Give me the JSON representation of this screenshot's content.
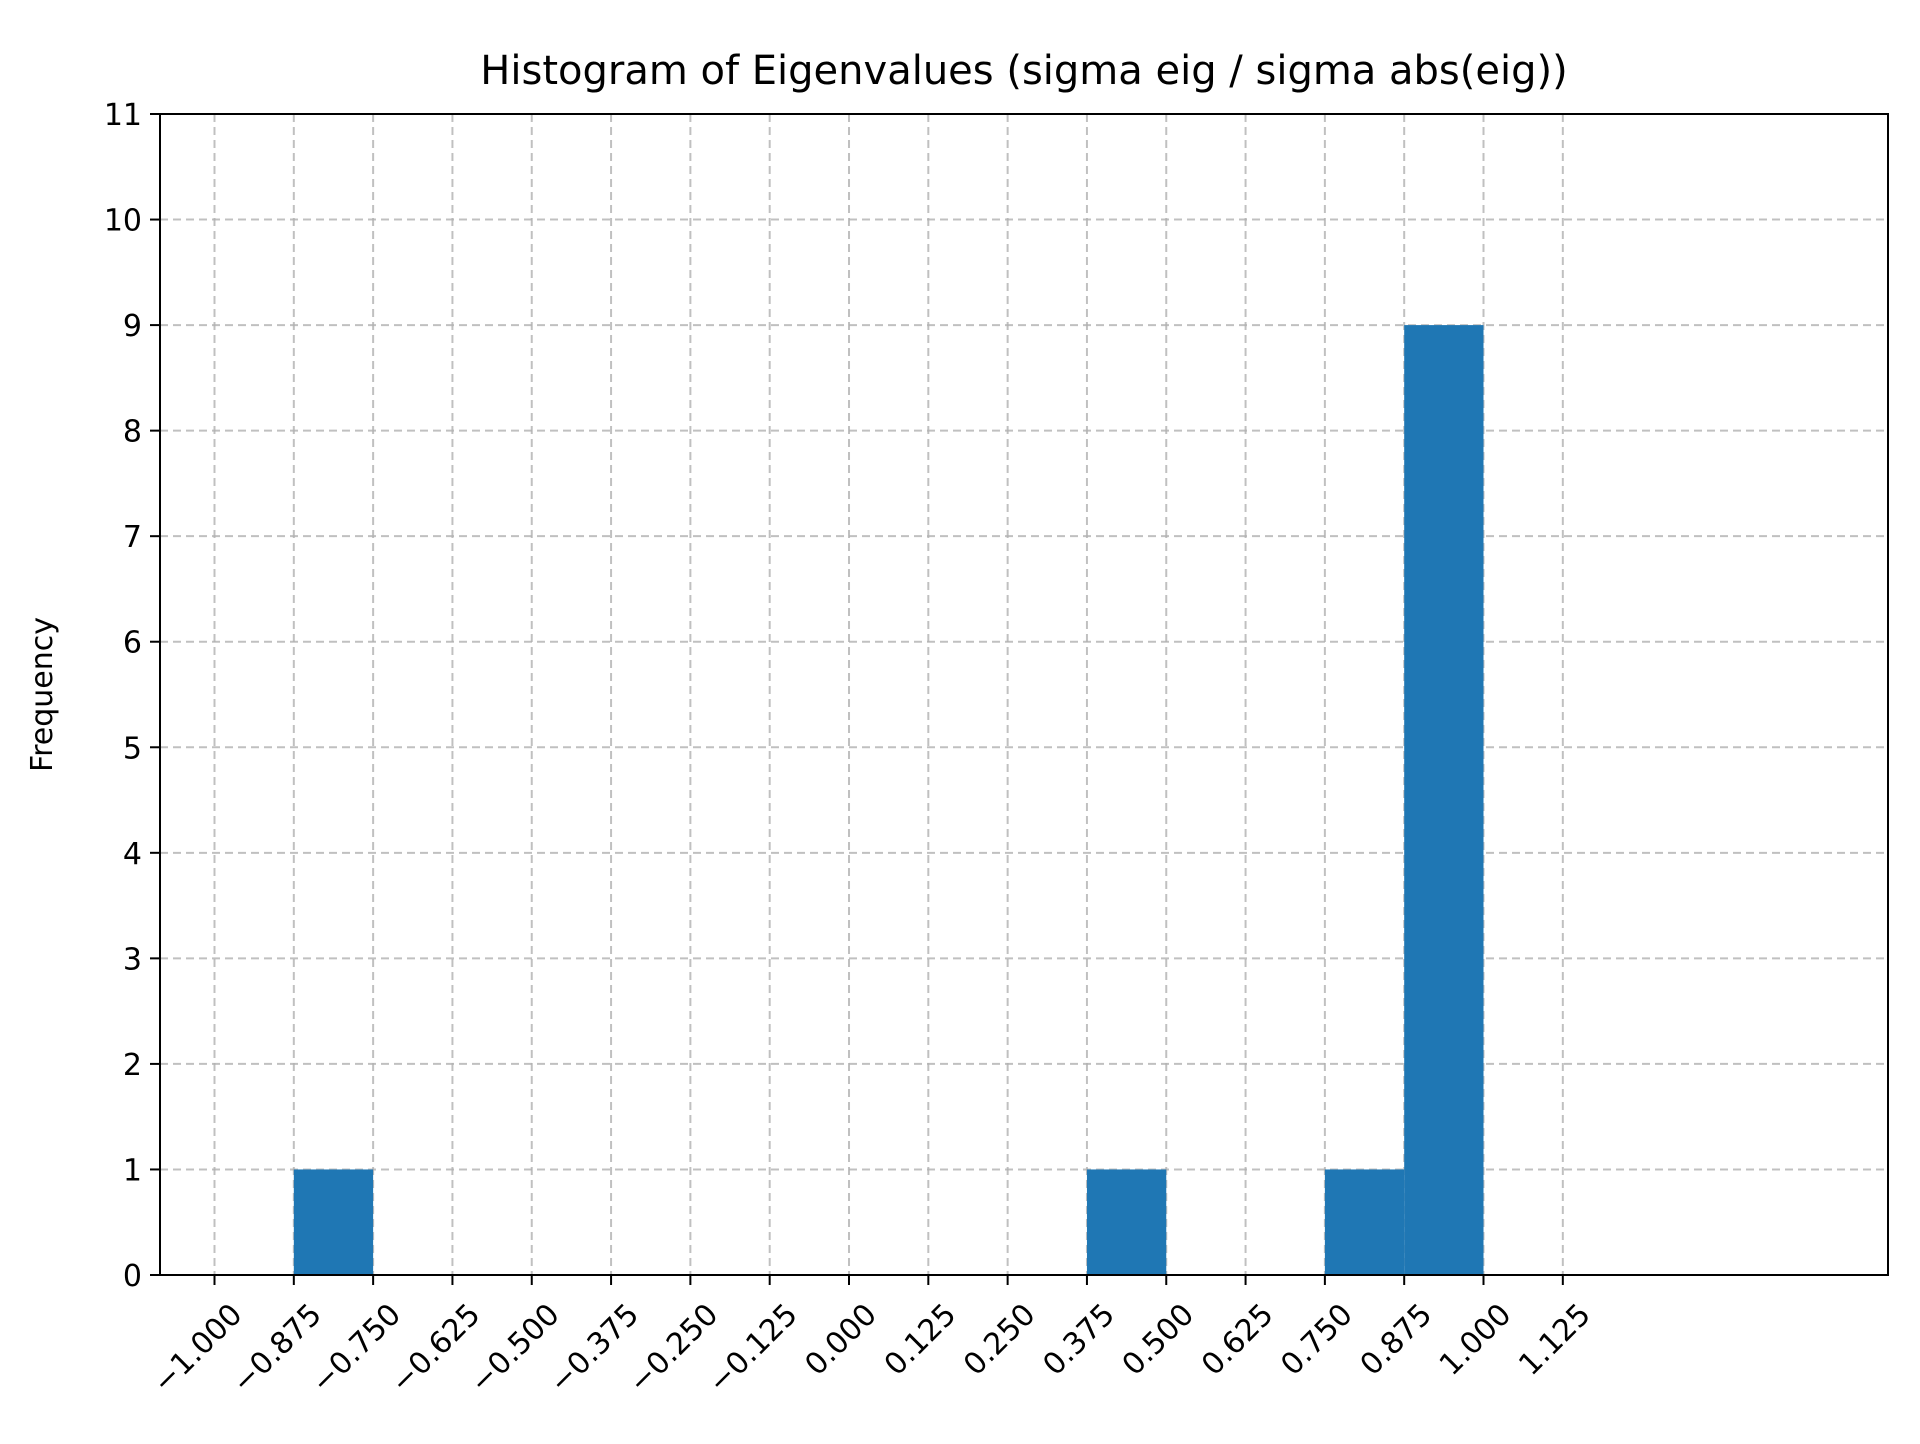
{
  "chart_data": {
    "type": "bar",
    "title": "Histogram of Eigenvalues (sigma eig / sigma abs(eig))",
    "xlabel": "",
    "ylabel": "Frequency",
    "xlim": [
      -1.0859,
      1.6375
    ],
    "ylim": [
      0,
      11
    ],
    "xticks": [
      "−1.000",
      "−0.875",
      "−0.750",
      "−0.625",
      "−0.500",
      "−0.375",
      "−0.250",
      "−0.125",
      "0.000",
      "0.125",
      "0.250",
      "0.375",
      "0.500",
      "0.625",
      "0.750",
      "0.875",
      "1.000",
      "1.125"
    ],
    "yticks": [
      "0",
      "1",
      "2",
      "3",
      "4",
      "5",
      "6",
      "7",
      "8",
      "9",
      "10",
      "11"
    ],
    "bins": [
      {
        "start": -0.875,
        "end": -0.75,
        "count": 1
      },
      {
        "start": 0.375,
        "end": 0.5,
        "count": 1
      },
      {
        "start": 0.75,
        "end": 0.875,
        "count": 1
      },
      {
        "start": 0.875,
        "end": 1.0,
        "count": 9
      }
    ],
    "grid": true,
    "bar_color": "#1f77b4",
    "grid_color": "#b0b0b0"
  }
}
